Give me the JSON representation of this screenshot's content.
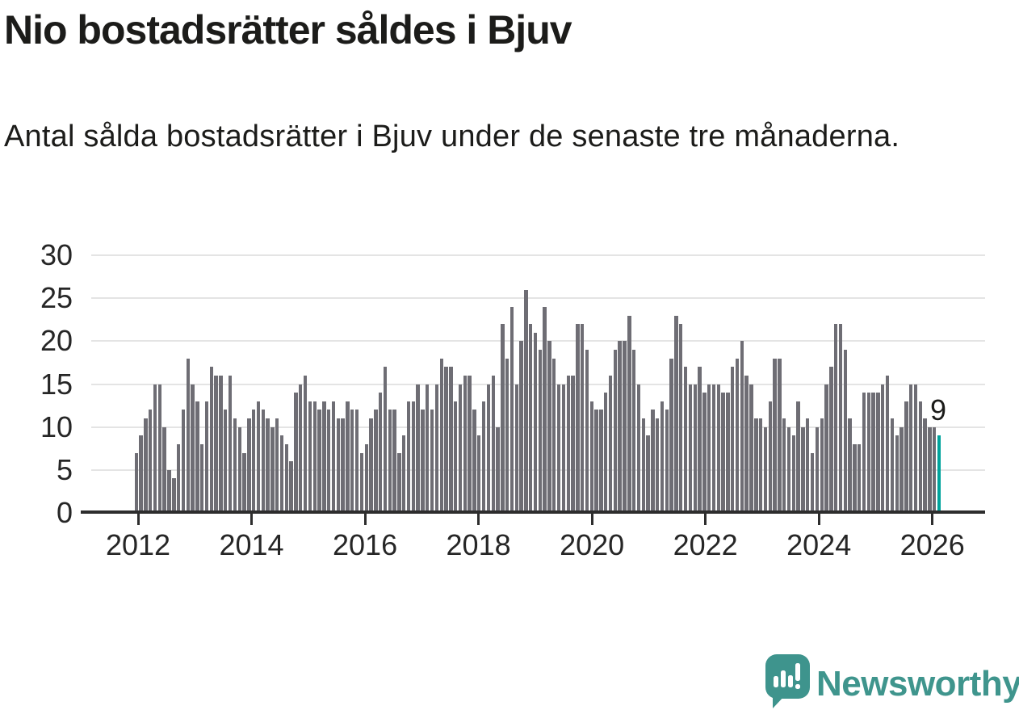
{
  "header": {
    "title": "Nio bostadsrätter såldes i Bjuv",
    "subtitle": "Antal sålda bostadsrätter i Bjuv under de senaste tre månaderna."
  },
  "chart_data": {
    "type": "bar",
    "title": "Nio bostadsrätter såldes i Bjuv",
    "xlabel": "",
    "ylabel": "",
    "ylim": [
      0,
      30
    ],
    "y_ticks": [
      0,
      5,
      10,
      15,
      20,
      25,
      30
    ],
    "x_tick_labels": [
      "2012",
      "2014",
      "2016",
      "2018",
      "2020",
      "2022",
      "2024",
      "2026"
    ],
    "grid": "horizontal",
    "legend": "none",
    "series_name": "Antal sålda bostadsrätter (rullande tre månader)",
    "values": [
      7,
      9,
      11,
      12,
      15,
      15,
      10,
      5,
      4,
      8,
      12,
      18,
      15,
      13,
      8,
      13,
      17,
      16,
      16,
      12,
      16,
      11,
      10,
      7,
      11,
      12,
      13,
      12,
      11,
      10,
      11,
      9,
      8,
      6,
      14,
      15,
      16,
      13,
      13,
      12,
      13,
      12,
      13,
      11,
      11,
      13,
      12,
      12,
      7,
      8,
      11,
      12,
      14,
      17,
      12,
      12,
      7,
      9,
      13,
      13,
      15,
      12,
      15,
      12,
      15,
      18,
      17,
      17,
      13,
      15,
      16,
      16,
      12,
      9,
      13,
      15,
      16,
      10,
      22,
      18,
      24,
      15,
      20,
      26,
      22,
      21,
      19,
      24,
      20,
      18,
      15,
      15,
      16,
      16,
      22,
      22,
      19,
      13,
      12,
      12,
      14,
      16,
      19,
      20,
      20,
      23,
      19,
      15,
      11,
      9,
      12,
      11,
      13,
      12,
      18,
      23,
      22,
      17,
      15,
      15,
      17,
      14,
      15,
      15,
      15,
      14,
      14,
      17,
      18,
      20,
      16,
      15,
      11,
      11,
      10,
      13,
      18,
      18,
      11,
      10,
      9,
      13,
      10,
      11,
      7,
      10,
      11,
      15,
      17,
      22,
      22,
      19,
      11,
      8,
      8,
      14,
      14,
      14,
      14,
      15,
      16,
      11,
      9,
      10,
      13,
      15,
      15,
      13,
      11,
      10,
      10,
      9
    ],
    "highlight_last": true,
    "last_point_label": "9"
  },
  "colors": {
    "bar": "#6e6d74",
    "highlight": "#00a39c",
    "grid": "#e4e4e4",
    "axis": "#2d2d2d",
    "text": "#1c1c1a",
    "brand": "#3f958d"
  },
  "footer": {
    "brand": "Newsworthy"
  }
}
